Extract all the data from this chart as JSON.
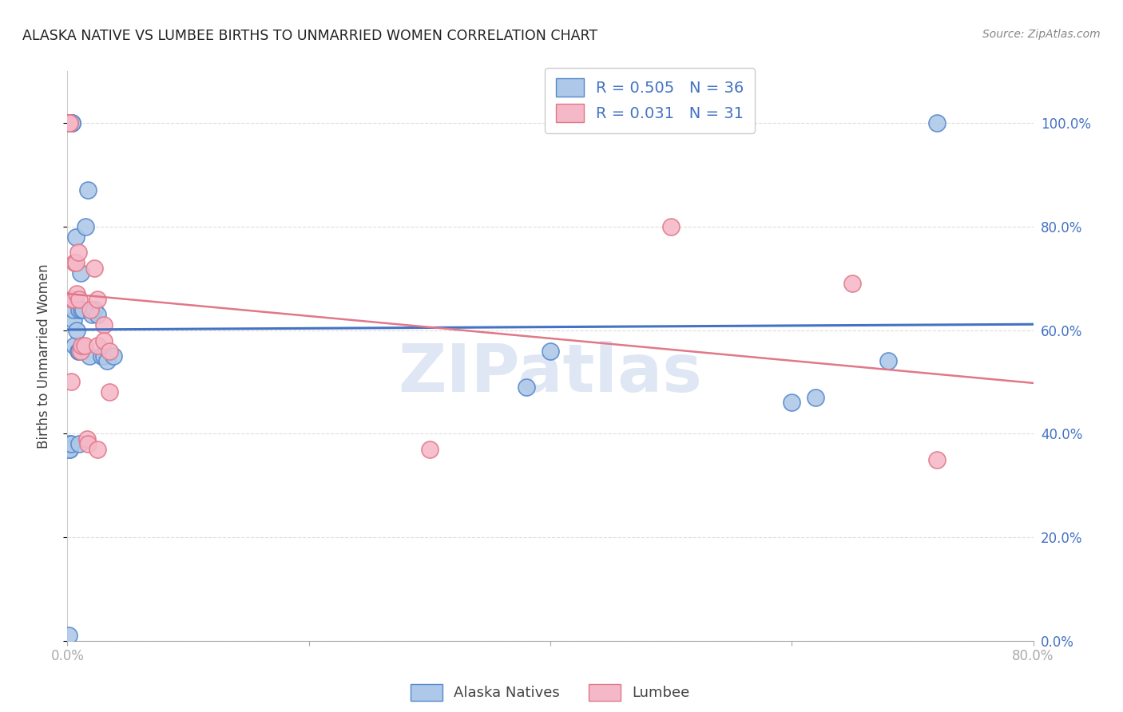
{
  "title": "ALASKA NATIVE VS LUMBEE BIRTHS TO UNMARRIED WOMEN CORRELATION CHART",
  "source": "Source: ZipAtlas.com",
  "ylabel": "Births to Unmarried Women",
  "legend_alaska": "Alaska Natives",
  "legend_lumbee": "Lumbee",
  "alaska_R": "0.505",
  "alaska_N": "36",
  "lumbee_R": "0.031",
  "lumbee_N": "31",
  "alaska_face_color": "#adc8e8",
  "lumbee_face_color": "#f5b8c8",
  "alaska_edge_color": "#5588cc",
  "lumbee_edge_color": "#e07888",
  "alaska_line_color": "#4472c4",
  "lumbee_line_color": "#e07888",
  "right_axis_color": "#4472c4",
  "watermark": "ZIPatlas",
  "watermark_color": "#ccd8ee",
  "grid_color": "#dddddd",
  "title_color": "#222222",
  "source_color": "#888888",
  "xlim": [
    0.0,
    0.8
  ],
  "ylim": [
    0.0,
    1.1
  ],
  "x_tick_vals": [
    0.0,
    0.2,
    0.4,
    0.6,
    0.8
  ],
  "y_tick_vals": [
    0.0,
    0.2,
    0.4,
    0.6,
    0.8,
    1.0
  ],
  "alaska_x": [
    0.001,
    0.002,
    0.002,
    0.002,
    0.003,
    0.003,
    0.004,
    0.004,
    0.005,
    0.005,
    0.006,
    0.007,
    0.008,
    0.009,
    0.01,
    0.01,
    0.011,
    0.012,
    0.013,
    0.015,
    0.017,
    0.018,
    0.02,
    0.022,
    0.025,
    0.028,
    0.03,
    0.033,
    0.038,
    0.38,
    0.4,
    0.6,
    0.62,
    0.68,
    0.72,
    0.01
  ],
  "alaska_y": [
    0.01,
    0.37,
    0.38,
    0.37,
    0.38,
    1.0,
    1.0,
    1.0,
    0.62,
    0.64,
    0.57,
    0.78,
    0.6,
    0.56,
    0.56,
    0.64,
    0.71,
    0.64,
    0.64,
    0.8,
    0.87,
    0.55,
    0.63,
    0.64,
    0.63,
    0.55,
    0.55,
    0.54,
    0.55,
    0.49,
    0.56,
    0.46,
    0.47,
    0.54,
    1.0,
    0.38
  ],
  "lumbee_x": [
    0.001,
    0.001,
    0.001,
    0.002,
    0.002,
    0.003,
    0.004,
    0.005,
    0.006,
    0.007,
    0.008,
    0.009,
    0.01,
    0.011,
    0.012,
    0.014,
    0.016,
    0.017,
    0.019,
    0.022,
    0.025,
    0.03,
    0.035,
    0.025,
    0.03,
    0.025,
    0.035,
    0.3,
    0.5,
    0.65,
    0.72
  ],
  "lumbee_y": [
    1.0,
    1.0,
    1.0,
    1.0,
    1.0,
    0.5,
    0.66,
    0.66,
    0.73,
    0.73,
    0.67,
    0.75,
    0.66,
    0.56,
    0.57,
    0.57,
    0.39,
    0.38,
    0.64,
    0.72,
    0.37,
    0.61,
    0.48,
    0.57,
    0.58,
    0.66,
    0.56,
    0.37,
    0.8,
    0.69,
    0.35
  ]
}
